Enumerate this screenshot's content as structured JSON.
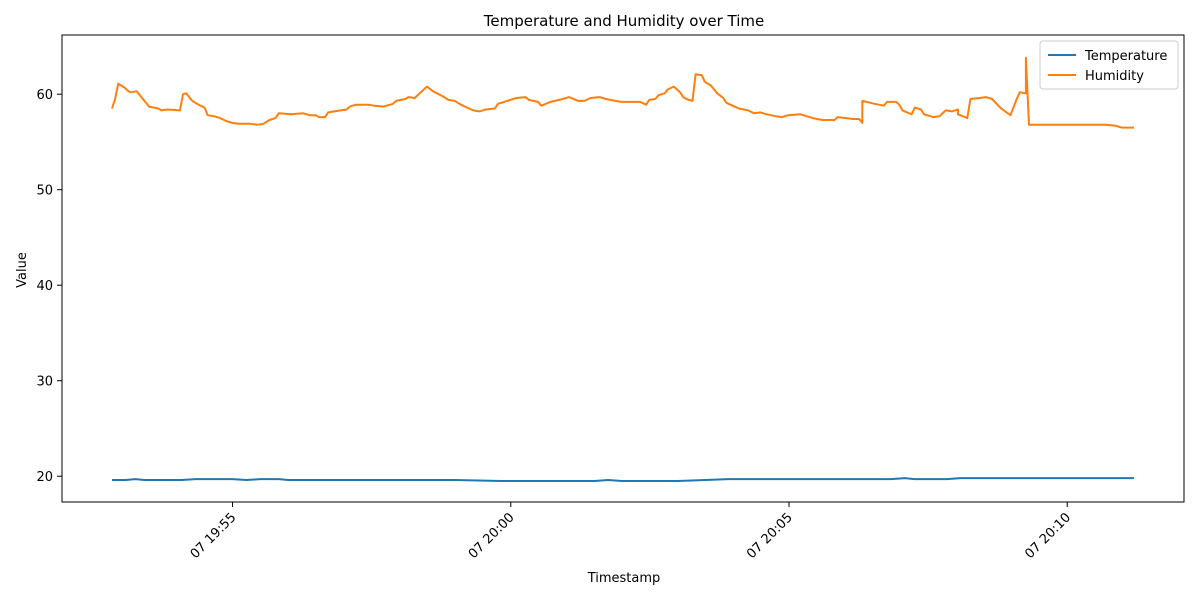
{
  "chart_data": {
    "type": "line",
    "title": "Temperature and Humidity over Time",
    "xlabel": "Timestamp",
    "ylabel": "Value",
    "x_range": [
      "07 19:52:50",
      "07 20:11:12"
    ],
    "ylim": [
      17.3,
      66.2
    ],
    "x_ticks": [
      {
        "label": "07 19:55",
        "t": "19:55:00"
      },
      {
        "label": "07 20:00",
        "t": "20:00:00"
      },
      {
        "label": "07 20:05",
        "t": "20:05:00"
      },
      {
        "label": "07 20:10",
        "t": "20:10:00"
      }
    ],
    "y_ticks": [
      20,
      30,
      40,
      50,
      60
    ],
    "grid": false,
    "legend_position": "top-right",
    "series": [
      {
        "name": "Temperature",
        "color": "#1f77b4",
        "points": [
          [
            "19:52:50",
            19.6
          ],
          [
            "19:53:05",
            19.6
          ],
          [
            "19:53:15",
            19.7
          ],
          [
            "19:53:25",
            19.6
          ],
          [
            "19:54:05",
            19.6
          ],
          [
            "19:54:20",
            19.7
          ],
          [
            "19:54:50",
            19.7
          ],
          [
            "19:55:00",
            19.7
          ],
          [
            "19:55:15",
            19.6
          ],
          [
            "19:55:30",
            19.7
          ],
          [
            "19:55:50",
            19.7
          ],
          [
            "19:56:00",
            19.6
          ],
          [
            "19:56:30",
            19.6
          ],
          [
            "19:57:00",
            19.6
          ],
          [
            "19:58:00",
            19.6
          ],
          [
            "19:59:00",
            19.6
          ],
          [
            "19:59:50",
            19.5
          ],
          [
            "20:00:30",
            19.5
          ],
          [
            "20:01:30",
            19.5
          ],
          [
            "20:01:45",
            19.6
          ],
          [
            "20:02:00",
            19.5
          ],
          [
            "20:03:00",
            19.5
          ],
          [
            "20:03:30",
            19.6
          ],
          [
            "20:03:55",
            19.7
          ],
          [
            "20:05:00",
            19.7
          ],
          [
            "20:06:00",
            19.7
          ],
          [
            "20:06:50",
            19.7
          ],
          [
            "20:07:05",
            19.8
          ],
          [
            "20:07:15",
            19.7
          ],
          [
            "20:07:50",
            19.7
          ],
          [
            "20:08:05",
            19.8
          ],
          [
            "20:08:20",
            19.8
          ],
          [
            "20:09:00",
            19.8
          ],
          [
            "20:10:00",
            19.8
          ],
          [
            "20:11:12",
            19.8
          ]
        ]
      },
      {
        "name": "Humidity",
        "color": "#ff7f0e",
        "points": [
          [
            "19:52:50",
            58.5
          ],
          [
            "19:52:55",
            59.5
          ],
          [
            "19:53:00",
            61.1
          ],
          [
            "19:53:10",
            60.7
          ],
          [
            "19:53:15",
            60.4
          ],
          [
            "19:53:20",
            60.2
          ],
          [
            "19:53:30",
            60.3
          ],
          [
            "19:53:40",
            59.5
          ],
          [
            "19:53:50",
            58.7
          ],
          [
            "19:54:05",
            58.5
          ],
          [
            "19:54:10",
            58.3
          ],
          [
            "19:54:20",
            58.4
          ],
          [
            "19:54:40",
            58.3
          ],
          [
            "19:54:45",
            60.0
          ],
          [
            "19:54:50",
            60.1
          ],
          [
            "19:55:00",
            59.3
          ],
          [
            "19:55:10",
            58.9
          ],
          [
            "19:55:20",
            58.6
          ],
          [
            "19:55:25",
            57.8
          ],
          [
            "19:55:35",
            57.7
          ],
          [
            "19:55:45",
            57.5
          ],
          [
            "19:55:55",
            57.2
          ],
          [
            "19:56:05",
            57.0
          ],
          [
            "19:56:15",
            56.9
          ],
          [
            "19:56:25",
            56.9
          ],
          [
            "19:56:35",
            56.9
          ],
          [
            "19:56:45",
            56.8
          ],
          [
            "19:56:55",
            56.9
          ],
          [
            "19:57:05",
            57.3
          ],
          [
            "19:57:15",
            57.5
          ],
          [
            "19:57:20",
            58.0
          ],
          [
            "19:57:40",
            57.9
          ],
          [
            "19:58:00",
            58.0
          ],
          [
            "19:58:10",
            57.8
          ],
          [
            "19:58:20",
            57.8
          ],
          [
            "19:58:25",
            57.6
          ],
          [
            "19:58:35",
            57.6
          ],
          [
            "19:58:40",
            58.1
          ],
          [
            "19:59:00",
            58.3
          ],
          [
            "19:59:10",
            58.4
          ],
          [
            "19:59:15",
            58.7
          ],
          [
            "19:59:25",
            58.9
          ],
          [
            "19:59:45",
            58.9
          ],
          [
            "19:59:55",
            58.8
          ],
          [
            "20:00:10",
            58.7
          ],
          [
            "20:00:25",
            59.0
          ],
          [
            "20:00:30",
            59.3
          ],
          [
            "20:00:45",
            59.5
          ],
          [
            "20:00:50",
            59.7
          ],
          [
            "20:01:00",
            59.6
          ],
          [
            "20:01:10",
            60.2
          ],
          [
            "20:01:20",
            60.8
          ],
          [
            "20:01:30",
            60.3
          ],
          [
            "20:01:45",
            59.8
          ],
          [
            "20:01:55",
            59.4
          ],
          [
            "20:02:05",
            59.3
          ],
          [
            "20:02:15",
            58.9
          ],
          [
            "20:02:25",
            58.6
          ],
          [
            "20:02:35",
            58.3
          ],
          [
            "20:02:45",
            58.2
          ],
          [
            "20:02:55",
            58.4
          ],
          [
            "20:03:10",
            58.5
          ],
          [
            "20:03:15",
            59.0
          ],
          [
            "20:03:25",
            59.2
          ],
          [
            "20:03:35",
            59.4
          ],
          [
            "20:03:45",
            59.6
          ],
          [
            "20:04:00",
            59.7
          ],
          [
            "20:04:05",
            59.4
          ],
          [
            "20:04:20",
            59.2
          ],
          [
            "20:04:25",
            58.8
          ],
          [
            "20:04:40",
            59.2
          ],
          [
            "20:05:00",
            59.5
          ],
          [
            "20:05:10",
            59.7
          ],
          [
            "20:05:25",
            59.3
          ],
          [
            "20:05:35",
            59.3
          ],
          [
            "20:05:45",
            59.6
          ],
          [
            "20:06:00",
            59.7
          ],
          [
            "20:06:10",
            59.5
          ],
          [
            "20:06:25",
            59.3
          ],
          [
            "20:06:35",
            59.2
          ],
          [
            "20:07:05",
            59.2
          ],
          [
            "20:07:15",
            58.9
          ],
          [
            "20:07:20",
            59.4
          ],
          [
            "20:07:30",
            59.5
          ],
          [
            "20:07:35",
            59.9
          ],
          [
            "20:07:45",
            60.1
          ],
          [
            "20:07:50",
            60.5
          ],
          [
            "20:08:00",
            60.8
          ],
          [
            "20:08:10",
            60.2
          ],
          [
            "20:08:15",
            59.7
          ],
          [
            "20:08:20",
            59.5
          ],
          [
            "20:08:30",
            59.3
          ],
          [
            "20:08:35",
            62.1
          ],
          [
            "20:08:45",
            62.0
          ],
          [
            "20:08:50",
            61.3
          ],
          [
            "20:09:00",
            60.9
          ],
          [
            "20:09:10",
            60.1
          ],
          [
            "20:09:20",
            59.6
          ],
          [
            "20:09:25",
            59.1
          ],
          [
            "20:09:35",
            58.8
          ],
          [
            "20:09:45",
            58.5
          ],
          [
            "20:10:00",
            58.3
          ],
          [
            "20:10:10",
            58.0
          ],
          [
            "20:10:20",
            58.1
          ],
          [
            "20:10:30",
            57.9
          ],
          [
            "20:10:45",
            57.7
          ],
          [
            "20:10:55",
            57.6
          ],
          [
            "20:11:05",
            57.8
          ],
          [
            "20:11:25",
            57.9
          ],
          [
            "20:11:35",
            57.7
          ],
          [
            "20:11:45",
            57.5
          ],
          [
            "20:12:00",
            57.3
          ],
          [
            "20:12:20",
            57.3
          ],
          [
            "20:12:25",
            57.6
          ],
          [
            "20:12:50",
            57.4
          ],
          [
            "20:13:00",
            57.4
          ],
          [
            "20:13:05",
            57.0
          ],
          [
            "20:13:05",
            59.3
          ],
          [
            "20:13:25",
            59.0
          ],
          [
            "20:13:40",
            58.8
          ],
          [
            "20:13:45",
            59.2
          ],
          [
            "20:14:00",
            59.2
          ],
          [
            "20:14:05",
            58.9
          ],
          [
            "20:14:10",
            58.3
          ],
          [
            "20:14:25",
            57.9
          ],
          [
            "20:14:30",
            58.6
          ],
          [
            "20:14:40",
            58.4
          ],
          [
            "20:14:45",
            57.9
          ],
          [
            "20:15:00",
            57.6
          ],
          [
            "20:15:10",
            57.7
          ],
          [
            "20:15:20",
            58.3
          ],
          [
            "20:15:30",
            58.2
          ],
          [
            "20:15:40",
            58.4
          ],
          [
            "20:15:40",
            57.9
          ],
          [
            "20:15:55",
            57.5
          ],
          [
            "20:16:00",
            59.5
          ],
          [
            "20:16:15",
            59.6
          ],
          [
            "20:16:25",
            59.7
          ],
          [
            "20:16:35",
            59.5
          ],
          [
            "20:16:50",
            58.5
          ],
          [
            "20:17:05",
            57.8
          ],
          [
            "20:17:15",
            59.5
          ],
          [
            "20:17:20",
            60.2
          ],
          [
            "20:17:30",
            60.1
          ],
          [
            "20:17:30",
            63.8
          ],
          [
            "20:17:35",
            56.8
          ],
          [
            "20:17:50",
            56.8
          ],
          [
            "20:18:30",
            56.8
          ],
          [
            "20:19:00",
            56.8
          ],
          [
            "20:19:40",
            56.8
          ],
          [
            "20:19:55",
            56.7
          ],
          [
            "20:20:05",
            56.5
          ],
          [
            "20:20:15",
            56.5
          ],
          [
            "20:20:25",
            56.5
          ]
        ]
      }
    ]
  }
}
